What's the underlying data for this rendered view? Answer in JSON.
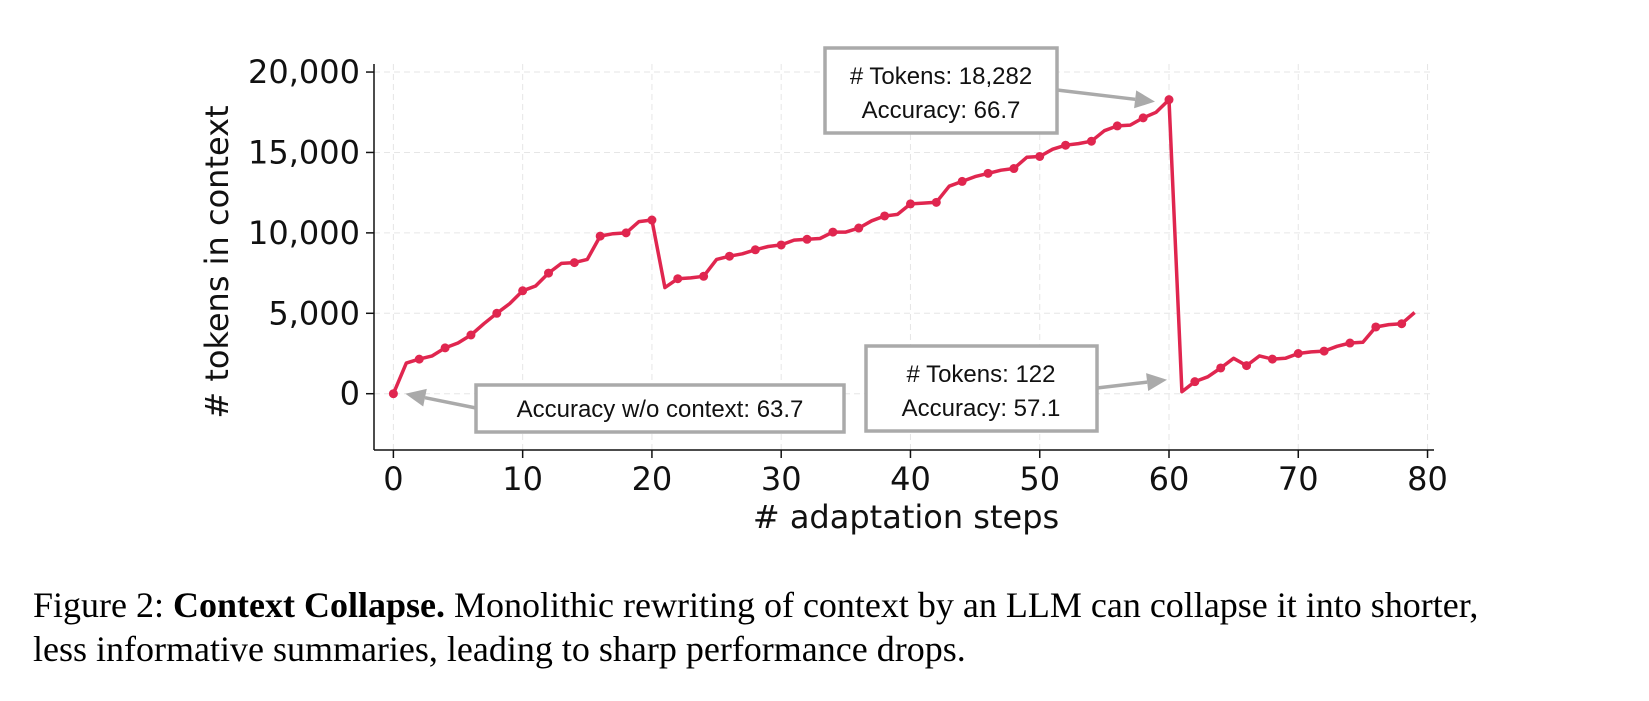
{
  "chart_data": {
    "type": "line",
    "xlabel": "# adaptation steps",
    "ylabel": "# tokens in context",
    "xlim": [
      -1.5,
      80.5
    ],
    "ylim": [
      -3500,
      20500
    ],
    "xticks": [
      0,
      10,
      20,
      30,
      40,
      50,
      60,
      70,
      80
    ],
    "yticks": [
      0,
      5000,
      10000,
      15000,
      20000
    ],
    "ytick_labels": [
      "0",
      "5,000",
      "10,000",
      "15,000",
      "20,000"
    ],
    "grid": true,
    "line_color": "#e0264f",
    "series": [
      {
        "x": [
          0,
          1,
          2,
          3,
          4,
          5,
          6,
          7,
          8,
          9,
          10,
          11,
          12,
          13,
          14,
          15,
          16,
          17,
          18,
          19,
          20,
          21,
          22,
          23,
          24,
          25,
          26,
          27,
          28,
          29,
          30,
          31,
          32,
          33,
          34,
          35,
          36,
          37,
          38,
          39,
          40,
          41,
          42,
          43,
          44,
          45,
          46,
          47,
          48,
          49,
          50,
          51,
          52,
          53,
          54,
          55,
          56,
          57,
          58,
          59,
          60,
          61,
          62,
          63,
          64,
          65,
          66,
          67,
          68,
          69,
          70,
          71,
          72,
          73,
          74,
          75,
          76,
          77,
          78,
          79
        ],
        "y": [
          0,
          1900,
          2150,
          2350,
          2850,
          3150,
          3650,
          4350,
          5000,
          5600,
          6400,
          6700,
          7500,
          8100,
          8150,
          8350,
          9800,
          9950,
          10000,
          10700,
          10800,
          6600,
          7150,
          7200,
          7300,
          8350,
          8550,
          8700,
          8950,
          9150,
          9250,
          9550,
          9600,
          9650,
          10050,
          10050,
          10300,
          10750,
          11050,
          11150,
          11800,
          11850,
          11900,
          12900,
          13200,
          13500,
          13700,
          13900,
          14000,
          14700,
          14750,
          15200,
          15450,
          15550,
          15700,
          16350,
          16650,
          16700,
          17150,
          17500,
          18282,
          122,
          750,
          1050,
          1600,
          2200,
          1750,
          2350,
          2150,
          2200,
          2500,
          2600,
          2650,
          2950,
          3150,
          3200,
          4150,
          4300,
          4350,
          5050
        ],
        "marker_x": [
          0,
          2,
          4,
          6,
          8,
          10,
          12,
          14,
          16,
          18,
          20,
          22,
          24,
          26,
          28,
          30,
          32,
          34,
          36,
          38,
          40,
          42,
          44,
          46,
          48,
          50,
          52,
          54,
          56,
          58,
          60,
          62,
          64,
          66,
          68,
          70,
          72,
          74,
          76,
          78
        ]
      }
    ],
    "annotations": [
      {
        "lines": [
          "Accuracy w/o context: 63.7"
        ],
        "target": [
          0,
          0
        ]
      },
      {
        "lines": [
          "# Tokens: 18,282",
          "Accuracy: 66.7"
        ],
        "target": [
          60,
          18282
        ]
      },
      {
        "lines": [
          "# Tokens: 122",
          "Accuracy: 57.1"
        ],
        "target": [
          60,
          122
        ]
      }
    ]
  },
  "caption": {
    "prefix": "Figure 2:",
    "bold": "Context Collapse.",
    "text_line1": " Monolithic rewriting of context by an LLM can collapse it into shorter,",
    "text_line2": "less informative summaries, leading to sharp performance drops."
  }
}
